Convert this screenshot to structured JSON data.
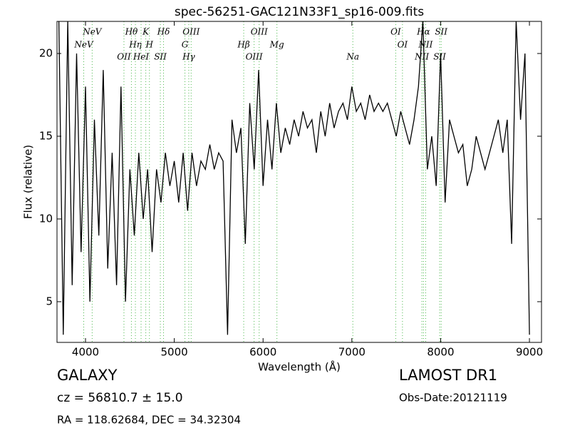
{
  "chart_data": {
    "type": "line",
    "title": "spec-56251-GAC121N33F1_sp16-009.fits",
    "x_label": "Wavelength (Å)",
    "y_label": "Flux (relative)",
    "object_class": "GALAXY",
    "redshift_text": "cz = 56810.7  ± 15.0",
    "coordinates": "RA = 118.62684, DEC = 34.32304",
    "survey": "LAMOST DR1",
    "obs_date": "Obs-Date:20121119",
    "xlim": [
      3679,
      9136
    ],
    "ylim": [
      2.54,
      21.94
    ],
    "xticks": [
      4000,
      5000,
      6000,
      7000,
      8000,
      9000
    ],
    "yticks": [
      5,
      10,
      15,
      20
    ],
    "line_color": "#4cb84c",
    "lines": [
      {
        "label": "NeV",
        "x": 4075
      },
      {
        "label": "NeV",
        "x": 3980
      },
      {
        "label": "OII",
        "x": 4433
      },
      {
        "label": "Hθ",
        "x": 4517
      },
      {
        "label": "Hη",
        "x": 4562
      },
      {
        "label": "HeI",
        "x": 4626
      },
      {
        "label": "K",
        "x": 4679
      },
      {
        "label": "H",
        "x": 4720
      },
      {
        "label": "SII",
        "x": 4843
      },
      {
        "label": "Hδ",
        "x": 4879
      },
      {
        "label": "G",
        "x": 5120
      },
      {
        "label": "Hγ",
        "x": 5163
      },
      {
        "label": "OIII",
        "x": 5190
      },
      {
        "label": "Hβ",
        "x": 5782
      },
      {
        "label": "OIII",
        "x": 5899
      },
      {
        "label": "OIII",
        "x": 5956
      },
      {
        "label": "Mg",
        "x": 6156
      },
      {
        "label": "Na",
        "x": 7011
      },
      {
        "label": "OI",
        "x": 7494
      },
      {
        "label": "OI",
        "x": 7570
      },
      {
        "label": "NII",
        "x": 7789
      },
      {
        "label": "Hα",
        "x": 7807
      },
      {
        "label": "NII",
        "x": 7831
      },
      {
        "label": "SII",
        "x": 7989
      },
      {
        "label": "SII",
        "x": 8006
      }
    ],
    "series": [
      {
        "color": "#000000",
        "x": [
          3700,
          3750,
          3800,
          3850,
          3900,
          3950,
          4000,
          4050,
          4100,
          4150,
          4200,
          4250,
          4300,
          4350,
          4400,
          4450,
          4500,
          4550,
          4600,
          4650,
          4700,
          4750,
          4800,
          4850,
          4900,
          4950,
          5000,
          5050,
          5100,
          5150,
          5200,
          5250,
          5300,
          5350,
          5400,
          5450,
          5500,
          5550,
          5600,
          5650,
          5700,
          5750,
          5800,
          5850,
          5900,
          5950,
          6000,
          6050,
          6100,
          6150,
          6200,
          6250,
          6300,
          6350,
          6400,
          6450,
          6500,
          6550,
          6600,
          6650,
          6700,
          6750,
          6800,
          6850,
          6900,
          6950,
          7000,
          7050,
          7100,
          7150,
          7200,
          7250,
          7300,
          7350,
          7400,
          7450,
          7500,
          7550,
          7600,
          7650,
          7700,
          7750,
          7800,
          7850,
          7900,
          7950,
          8000,
          8050,
          8100,
          8150,
          8200,
          8250,
          8300,
          8350,
          8400,
          8450,
          8500,
          8550,
          8600,
          8650,
          8700,
          8750,
          8800,
          8850,
          8900,
          8950,
          9000
        ],
        "values": [
          22,
          3,
          22,
          6,
          20,
          8,
          18,
          5,
          16,
          9,
          19,
          7,
          14,
          6,
          18,
          5,
          13,
          9,
          14,
          10,
          13,
          8,
          13,
          11,
          14,
          12,
          13.5,
          11,
          14,
          10.5,
          14,
          12,
          13.5,
          13,
          14.5,
          13,
          14,
          13.5,
          3,
          16,
          14,
          15.5,
          8.5,
          17,
          13,
          19,
          12,
          16,
          13,
          17,
          14,
          15.5,
          14.5,
          16,
          15,
          16.5,
          15.5,
          16,
          14,
          16.5,
          15,
          17,
          15.5,
          16.5,
          17,
          16,
          18,
          16.5,
          17,
          16,
          17.5,
          16.5,
          17,
          16.5,
          17,
          16,
          15,
          16.5,
          15.5,
          14.5,
          16,
          18,
          22,
          13,
          15,
          12,
          20,
          11,
          16,
          15,
          14,
          14.5,
          12,
          13,
          15,
          14,
          13,
          14,
          15,
          16,
          14,
          16,
          8.5,
          22,
          16,
          20,
          3
        ]
      }
    ]
  }
}
